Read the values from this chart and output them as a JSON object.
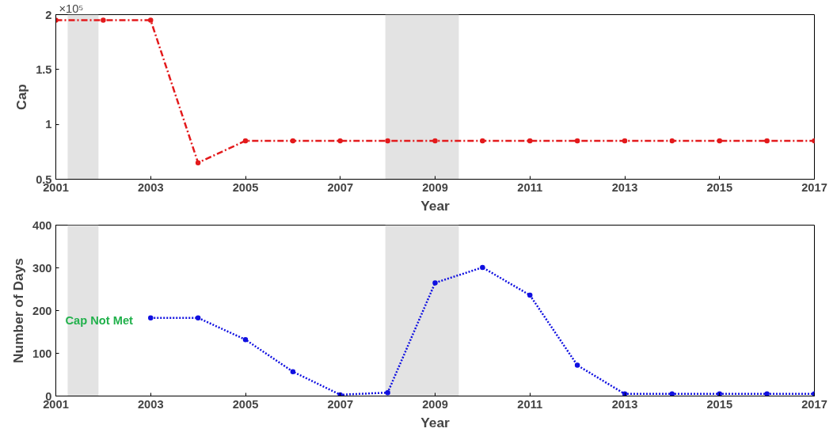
{
  "chart_data": [
    {
      "type": "line",
      "xlabel": "Year",
      "ylabel": "Cap",
      "x": [
        2001,
        2002,
        2003,
        2004,
        2005,
        2006,
        2007,
        2008,
        2009,
        2010,
        2011,
        2012,
        2013,
        2014,
        2015,
        2016,
        2017
      ],
      "series": [
        {
          "color": "#e31a1c",
          "values": [
            1.95,
            1.95,
            1.95,
            0.65,
            0.85,
            0.85,
            0.85,
            0.85,
            0.85,
            0.85,
            0.85,
            0.85,
            0.85,
            0.85,
            0.85,
            0.85,
            0.85
          ]
        }
      ],
      "xlim": [
        2001,
        2017
      ],
      "xticks": [
        2001,
        2003,
        2005,
        2007,
        2009,
        2011,
        2013,
        2015,
        2017
      ],
      "ylim": [
        0.5,
        2
      ],
      "yticks": [
        0.5,
        1,
        1.5,
        2
      ],
      "annotations": [
        "×10⁵"
      ],
      "bands": [
        {
          "axis": "x",
          "from": 2001.25,
          "to": 2001.9,
          "color": "#e3e3e3"
        },
        {
          "axis": "x",
          "from": 2007.95,
          "to": 2009.5,
          "color": "#e3e3e3"
        }
      ],
      "grid": false,
      "marker": "circle",
      "line_style": "dashed"
    },
    {
      "type": "line",
      "xlabel": "Year",
      "ylabel": "Number of Days",
      "x": [
        2003,
        2004,
        2005,
        2006,
        2007,
        2008,
        2009,
        2010,
        2011,
        2012,
        2013,
        2014,
        2015,
        2016,
        2017
      ],
      "series": [
        {
          "color": "#1010e0",
          "values": [
            183,
            183,
            132,
            57,
            3,
            8,
            265,
            301,
            236,
            72,
            5,
            5,
            5,
            5,
            5
          ]
        }
      ],
      "xlim": [
        2001,
        2017
      ],
      "xticks": [
        2001,
        2003,
        2005,
        2007,
        2009,
        2011,
        2013,
        2015,
        2017
      ],
      "ylim": [
        0,
        400
      ],
      "yticks": [
        0,
        100,
        200,
        300,
        400
      ],
      "annotations": [
        "Cap Not Met"
      ],
      "bands": [
        {
          "axis": "x",
          "from": 2001.25,
          "to": 2001.9,
          "color": "#e3e3e3"
        },
        {
          "axis": "x",
          "from": 2007.95,
          "to": 2009.5,
          "color": "#e3e3e3"
        }
      ],
      "grid": false,
      "marker": "circle",
      "line_style": "dotted"
    }
  ]
}
